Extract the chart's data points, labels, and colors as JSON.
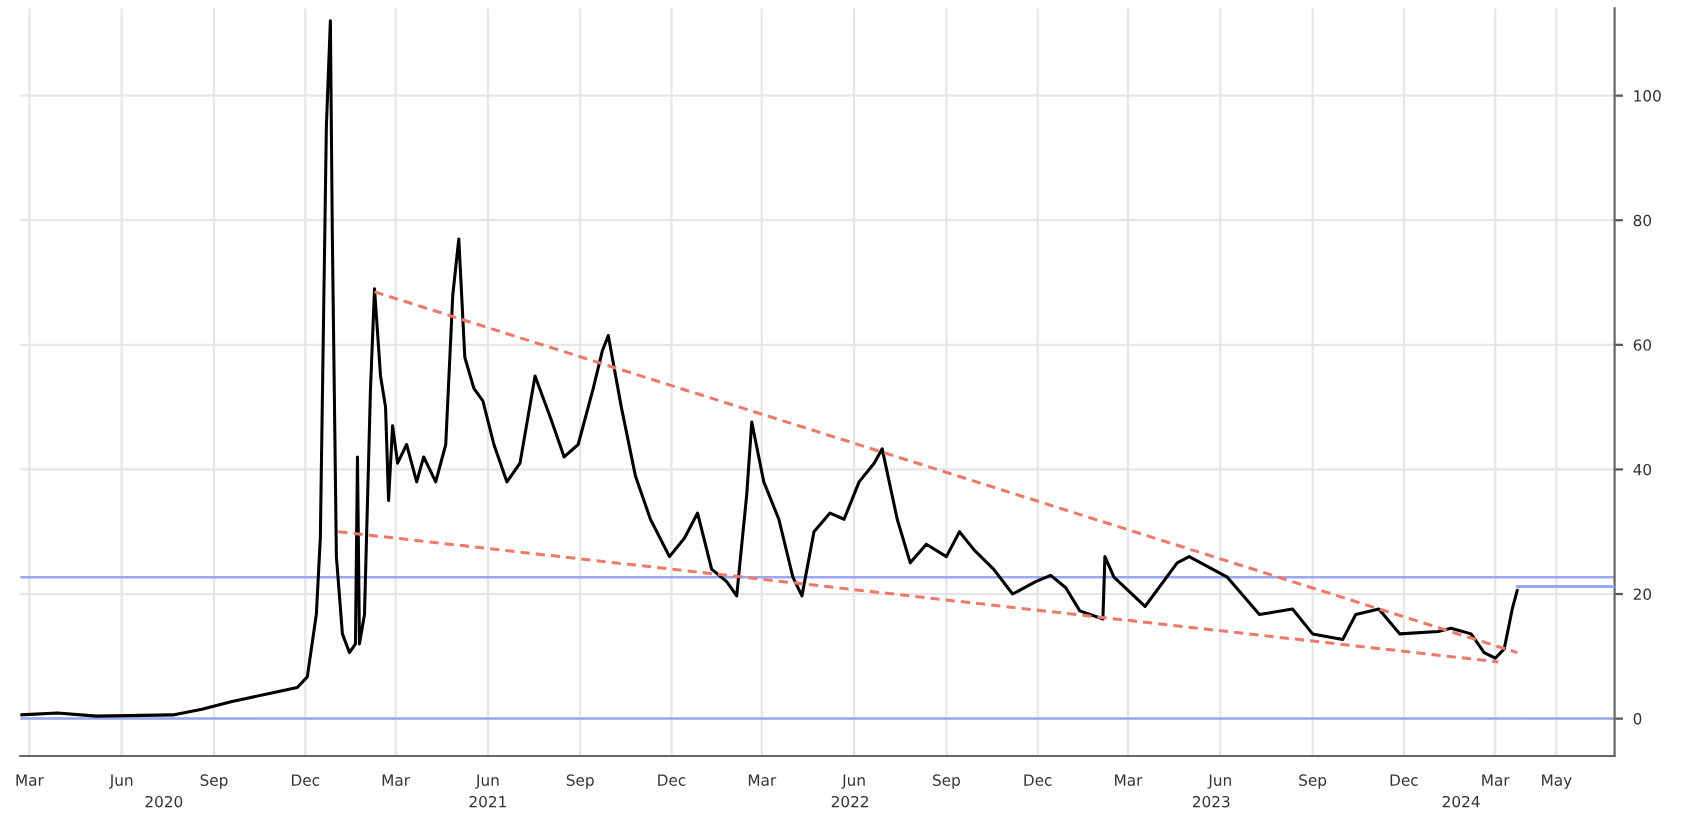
{
  "chart_data": {
    "type": "line",
    "grid": true,
    "xlim": [
      "2020-02-21",
      "2024-06-28"
    ],
    "ylim": [
      -6,
      114
    ],
    "yticks": [
      0,
      20,
      40,
      60,
      80,
      100
    ],
    "xticks": [
      {
        "value": "2020-03-01",
        "label": "Mar"
      },
      {
        "value": "2020-06-01",
        "label": "Jun"
      },
      {
        "value": "2020-09-01",
        "label": "Sep"
      },
      {
        "value": "2020-12-01",
        "label": "Dec"
      },
      {
        "value": "2021-03-01",
        "label": "Mar"
      },
      {
        "value": "2021-06-01",
        "label": "Jun"
      },
      {
        "value": "2021-09-01",
        "label": "Sep"
      },
      {
        "value": "2021-12-01",
        "label": "Dec"
      },
      {
        "value": "2022-03-01",
        "label": "Mar"
      },
      {
        "value": "2022-06-01",
        "label": "Jun"
      },
      {
        "value": "2022-09-01",
        "label": "Sep"
      },
      {
        "value": "2022-12-01",
        "label": "Dec"
      },
      {
        "value": "2023-03-01",
        "label": "Mar"
      },
      {
        "value": "2023-06-01",
        "label": "Jun"
      },
      {
        "value": "2023-09-01",
        "label": "Sep"
      },
      {
        "value": "2023-12-01",
        "label": "Dec"
      },
      {
        "value": "2024-03-01",
        "label": "Mar"
      },
      {
        "value": "2024-05-01",
        "label": "May"
      }
    ],
    "x2lim": [
      "2020-02-21",
      "2024-06-28"
    ],
    "x2ticks": [
      {
        "value": "2020-07-13",
        "label": "2020"
      },
      {
        "value": "2021-06-01",
        "label": "2021"
      },
      {
        "value": "2022-05-28",
        "label": "2022"
      },
      {
        "value": "2023-05-23",
        "label": "2023"
      },
      {
        "value": "2024-01-27",
        "label": "2024"
      }
    ],
    "ref_lines": [
      {
        "axis": "y",
        "value": 0,
        "color": "#9aa8f0"
      },
      {
        "axis": "y",
        "value": 22.7,
        "color": "#9aa8f0"
      }
    ],
    "series": [
      {
        "color": "#000000",
        "x": [
          "2020-02-21",
          "2020-03-29",
          "2020-05-07",
          "2020-07-22",
          "2020-08-20",
          "2020-09-18",
          "2020-10-25",
          "2020-11-23",
          "2020-12-03",
          "2020-12-12",
          "2020-12-16",
          "2020-12-22",
          "2020-12-26",
          "2020-12-28",
          "2021-01-01",
          "2021-01-07",
          "2021-01-14",
          "2021-01-20",
          "2021-01-22",
          "2021-01-24",
          "2021-01-29",
          "2021-02-04",
          "2021-02-08",
          "2021-02-14",
          "2021-02-19",
          "2021-02-22",
          "2021-02-26",
          "2021-03-03",
          "2021-03-12",
          "2021-03-22",
          "2021-03-29",
          "2021-04-10",
          "2021-04-20",
          "2021-04-27",
          "2021-05-03",
          "2021-05-09",
          "2021-05-18",
          "2021-05-27",
          "2021-06-07",
          "2021-06-20",
          "2021-07-03",
          "2021-07-18",
          "2021-08-03",
          "2021-08-16",
          "2021-08-30",
          "2021-09-14",
          "2021-09-23",
          "2021-09-29",
          "2021-10-12",
          "2021-10-26",
          "2021-11-10",
          "2021-11-29",
          "2021-12-14",
          "2021-12-27",
          "2022-01-10",
          "2022-01-25",
          "2022-02-04",
          "2022-02-14",
          "2022-02-19",
          "2022-03-03",
          "2022-03-18",
          "2022-04-01",
          "2022-04-10",
          "2022-04-22",
          "2022-05-08",
          "2022-05-22",
          "2022-06-06",
          "2022-06-21",
          "2022-06-29",
          "2022-07-14",
          "2022-07-27",
          "2022-08-12",
          "2022-09-01",
          "2022-09-14",
          "2022-09-29",
          "2022-10-18",
          "2022-11-06",
          "2022-11-29",
          "2022-12-14",
          "2022-12-29",
          "2023-01-12",
          "2023-02-04",
          "2023-02-06",
          "2023-02-15",
          "2023-03-18",
          "2023-04-19",
          "2023-05-01",
          "2023-06-08",
          "2023-07-10",
          "2023-08-12",
          "2023-09-01",
          "2023-10-01",
          "2023-10-14",
          "2023-11-06",
          "2023-11-27",
          "2024-01-04",
          "2024-01-17",
          "2024-02-06",
          "2024-02-19",
          "2024-03-01",
          "2024-03-10",
          "2024-03-18",
          "2024-03-23"
        ],
        "values": [
          0.6,
          0.9,
          0.4,
          0.6,
          1.5,
          2.7,
          4,
          5,
          6.7,
          16.7,
          29,
          95,
          112,
          77,
          26,
          13.6,
          10.6,
          12,
          42,
          12,
          16.7,
          53,
          69,
          55,
          50,
          35,
          47,
          41,
          44,
          38,
          42,
          38,
          44,
          68,
          77,
          58,
          53,
          51,
          44,
          38,
          41,
          55,
          48,
          42,
          44,
          53,
          59,
          61.5,
          50,
          39,
          32,
          26,
          29,
          33,
          24,
          22,
          19.7,
          36,
          47.6,
          38,
          32,
          22.7,
          19.7,
          30,
          33,
          32,
          38,
          41,
          43.3,
          32,
          25,
          28,
          26,
          30,
          27,
          24,
          20,
          22,
          23,
          21,
          17.3,
          16,
          26,
          22.7,
          18,
          25,
          26,
          22.7,
          16.7,
          17.6,
          13.6,
          12.7,
          16.7,
          17.6,
          13.6,
          14,
          14.5,
          13.6,
          10.6,
          9.7,
          11.2,
          17.6,
          20.6
        ]
      },
      {
        "color": "#f07868",
        "line_style": "dashed",
        "x": [
          "2021-02-08",
          "2024-03-23"
        ],
        "values": [
          68.5,
          10.6
        ]
      },
      {
        "color": "#f07868",
        "line_style": "dashed",
        "x": [
          "2021-01-03",
          "2024-03-04"
        ],
        "values": [
          30,
          9.1
        ]
      },
      {
        "color": "#9aa8f0",
        "x": [
          "2024-03-23",
          "2024-06-28"
        ],
        "values": [
          21.2,
          21.2
        ]
      }
    ]
  }
}
